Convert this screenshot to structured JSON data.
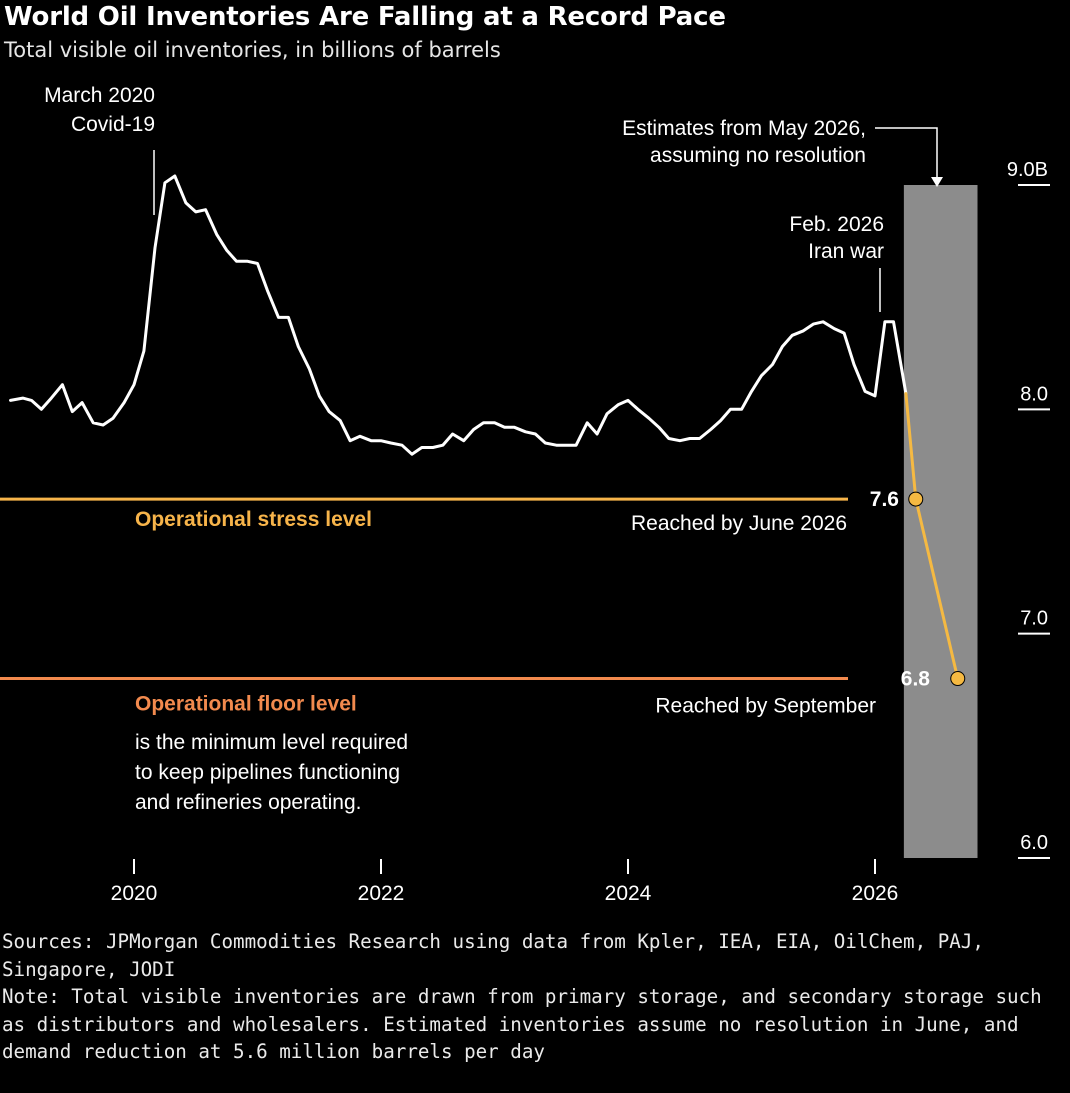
{
  "header": {
    "title": "World Oil Inventories Are Falling at a Record Pace",
    "subtitle": "Total visible oil inventories, in billions of barrels"
  },
  "chart_data": {
    "type": "line",
    "title": "World Oil Inventories Are Falling at a Record Pace",
    "subtitle": "Total visible oil inventories, in billions of barrels",
    "xlim": [
      2018.9,
      2027.2
    ],
    "ylim": [
      6.0,
      9.0
    ],
    "x_ticks": [
      {
        "value": 2020,
        "label": "2020"
      },
      {
        "value": 2022,
        "label": "2022"
      },
      {
        "value": 2024,
        "label": "2024"
      },
      {
        "value": 2026,
        "label": "2026"
      }
    ],
    "y_ticks": [
      {
        "value": 9.0,
        "label": "9.0B"
      },
      {
        "value": 8.0,
        "label": "8.0"
      },
      {
        "value": 7.0,
        "label": "7.0"
      },
      {
        "value": 6.0,
        "label": "6.0"
      }
    ],
    "series": [
      {
        "color": "#ffffff",
        "x": [
          2019.0,
          2019.1,
          2019.17,
          2019.25,
          2019.33,
          2019.42,
          2019.5,
          2019.58,
          2019.67,
          2019.75,
          2019.83,
          2019.92,
          2020.0,
          2020.08,
          2020.17,
          2020.25,
          2020.33,
          2020.42,
          2020.5,
          2020.58,
          2020.67,
          2020.75,
          2020.83,
          2020.92,
          2021.0,
          2021.08,
          2021.17,
          2021.25,
          2021.33,
          2021.42,
          2021.5,
          2021.58,
          2021.67,
          2021.75,
          2021.83,
          2021.92,
          2022.0,
          2022.08,
          2022.17,
          2022.25,
          2022.33,
          2022.42,
          2022.5,
          2022.58,
          2022.67,
          2022.75,
          2022.83,
          2022.92,
          2023.0,
          2023.08,
          2023.17,
          2023.25,
          2023.33,
          2023.42,
          2023.5,
          2023.58,
          2023.67,
          2023.75,
          2023.83,
          2023.92,
          2024.0,
          2024.08,
          2024.17,
          2024.25,
          2024.33,
          2024.42,
          2024.5,
          2024.58,
          2024.67,
          2024.75,
          2024.83,
          2024.92,
          2025.0,
          2025.08,
          2025.17,
          2025.25,
          2025.33,
          2025.42,
          2025.5,
          2025.58,
          2025.67,
          2025.75,
          2025.83,
          2025.92,
          2026.0,
          2026.08,
          2026.15,
          2026.25
        ],
        "y": [
          8.04,
          8.05,
          8.04,
          8.0,
          8.05,
          8.11,
          7.99,
          8.03,
          7.94,
          7.93,
          7.96,
          8.03,
          8.11,
          8.26,
          8.72,
          9.01,
          9.04,
          8.92,
          8.88,
          8.89,
          8.78,
          8.71,
          8.66,
          8.66,
          8.65,
          8.53,
          8.41,
          8.41,
          8.28,
          8.18,
          8.06,
          7.99,
          7.95,
          7.86,
          7.88,
          7.86,
          7.86,
          7.85,
          7.84,
          7.8,
          7.83,
          7.83,
          7.84,
          7.89,
          7.86,
          7.91,
          7.94,
          7.94,
          7.92,
          7.92,
          7.9,
          7.89,
          7.85,
          7.84,
          7.84,
          7.84,
          7.94,
          7.89,
          7.98,
          8.02,
          8.04,
          8.0,
          7.96,
          7.92,
          7.87,
          7.86,
          7.87,
          7.87,
          7.91,
          7.95,
          8.0,
          8.0,
          8.08,
          8.15,
          8.2,
          8.28,
          8.33,
          8.35,
          8.38,
          8.39,
          8.36,
          8.34,
          8.2,
          8.08,
          8.06,
          8.39,
          8.39,
          8.07
        ]
      },
      {
        "color": "#f5b942",
        "x": [
          2026.25,
          2026.33,
          2026.67
        ],
        "y": [
          8.07,
          7.6,
          6.8
        ]
      }
    ],
    "estimate_shading": {
      "x_from": 2026.25,
      "x_to": 2026.83,
      "color": "#8c8c8c"
    },
    "reference_lines": [
      {
        "value": 7.6,
        "label": "Operational stress level",
        "color": "#f7b44a",
        "value_label": "7.6",
        "note": "Reached by June 2026"
      },
      {
        "value": 6.8,
        "label": "Operational floor level",
        "color": "#f28a4e",
        "value_label": "6.8",
        "note": "Reached by September"
      }
    ],
    "annotations": {
      "covid_line1": "March 2020",
      "covid_line2": "Covid-19",
      "estimates_line1": "Estimates from May 2026,",
      "estimates_line2": "assuming no resolution",
      "iran_line1": "Feb. 2026",
      "iran_line2": "Iran war",
      "floor_desc1": "is the minimum level required",
      "floor_desc2": "to keep pipelines functioning",
      "floor_desc3": "and refineries operating."
    }
  },
  "footer": {
    "sources": "Sources: JPMorgan Commodities Research using data from Kpler, IEA, EIA, OilChem, PAJ, Singapore, JODI",
    "note": "Note: Total visible inventories are drawn from primary storage, and secondary storage such as distributors and wholesalers. Estimated inventories assume no resolution in June, and demand reduction at 5.6 million barrels per day"
  }
}
